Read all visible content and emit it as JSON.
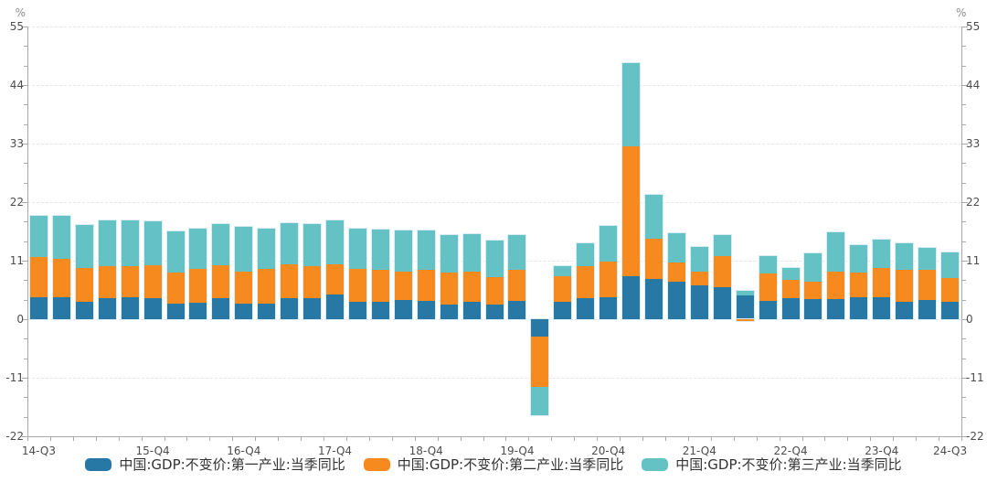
{
  "chart_data": {
    "type": "bar",
    "stacked": true,
    "title": "",
    "unit": "%",
    "ylim": [
      -22,
      55
    ],
    "ytick_values": [
      55,
      44,
      33,
      22,
      11,
      0,
      -11,
      -22
    ],
    "minor_ticks_per_interval": 2,
    "grid": true,
    "legend_position": "bottom",
    "categories": [
      "14-Q3",
      "14-Q4",
      "15-Q1",
      "15-Q2",
      "15-Q3",
      "15-Q4",
      "16-Q1",
      "16-Q2",
      "16-Q3",
      "16-Q4",
      "17-Q1",
      "17-Q2",
      "17-Q3",
      "17-Q4",
      "18-Q1",
      "18-Q2",
      "18-Q3",
      "18-Q4",
      "19-Q1",
      "19-Q2",
      "19-Q3",
      "19-Q4",
      "20-Q1",
      "20-Q2",
      "20-Q3",
      "20-Q4",
      "21-Q1",
      "21-Q2",
      "21-Q3",
      "21-Q4",
      "22-Q1",
      "22-Q2",
      "22-Q3",
      "22-Q4",
      "23-Q1",
      "23-Q2",
      "23-Q3",
      "23-Q4",
      "24-Q1",
      "24-Q2",
      "24-Q3"
    ],
    "xtick_shown": [
      {
        "index": 0,
        "label": "14-Q3"
      },
      {
        "index": 5,
        "label": "15-Q4"
      },
      {
        "index": 9,
        "label": "16-Q4"
      },
      {
        "index": 13,
        "label": "17-Q4"
      },
      {
        "index": 17,
        "label": "18-Q4"
      },
      {
        "index": 21,
        "label": "19-Q4"
      },
      {
        "index": 25,
        "label": "20-Q4"
      },
      {
        "index": 29,
        "label": "21-Q4"
      },
      {
        "index": 33,
        "label": "22-Q4"
      },
      {
        "index": 37,
        "label": "23-Q4"
      },
      {
        "index": 40,
        "label": "24-Q3"
      }
    ],
    "series": [
      {
        "name": "中国:GDP:不变价:第一产业:当季同比",
        "color": "#2878A6",
        "values": [
          4.2,
          4.1,
          3.2,
          3.9,
          4.1,
          4.0,
          2.9,
          3.1,
          4.0,
          2.9,
          3.0,
          3.9,
          3.9,
          4.6,
          3.2,
          3.2,
          3.6,
          3.5,
          2.7,
          3.3,
          2.7,
          3.4,
          -3.2,
          3.3,
          3.9,
          4.1,
          8.1,
          7.6,
          7.1,
          6.4,
          6.0,
          4.4,
          3.4,
          4.0,
          3.7,
          3.7,
          4.2,
          4.2,
          3.3,
          3.6,
          3.2
        ]
      },
      {
        "name": "中国:GDP:不变价:第二产业:当季同比",
        "color": "#F78A1E",
        "values": [
          7.4,
          7.3,
          6.4,
          6.1,
          5.8,
          6.1,
          5.9,
          6.3,
          6.1,
          6.1,
          6.4,
          6.4,
          6.0,
          5.7,
          6.3,
          6.0,
          5.3,
          5.8,
          6.1,
          5.6,
          5.2,
          5.8,
          -9.6,
          4.7,
          6.0,
          6.8,
          24.4,
          7.5,
          3.6,
          2.5,
          5.8,
          -0.4,
          5.2,
          3.4,
          3.3,
          5.2,
          4.6,
          5.5,
          6.0,
          5.6,
          4.6
        ]
      },
      {
        "name": "中国:GDP:不变价:第三产业:当季同比",
        "color": "#64C2C4",
        "values": [
          7.9,
          8.1,
          8.1,
          8.5,
          8.6,
          8.3,
          7.7,
          7.7,
          7.7,
          8.4,
          7.7,
          7.7,
          8.0,
          8.3,
          7.5,
          7.7,
          7.7,
          7.3,
          7.0,
          7.0,
          6.9,
          6.6,
          -5.2,
          1.9,
          4.3,
          6.7,
          15.6,
          8.3,
          5.4,
          4.6,
          4.0,
          0.9,
          3.2,
          2.3,
          5.4,
          7.4,
          5.2,
          5.3,
          5.0,
          4.2,
          4.8
        ]
      }
    ],
    "style_colors": {
      "background": "#ffffff",
      "axis_line": "#a9a9a9",
      "grid_line": "#e6e6e6",
      "tick_label": "#4d4d4d",
      "unit_label": "#8c8c8c",
      "legend_text": "#333333",
      "bar_outline": "#d9edf2"
    }
  }
}
